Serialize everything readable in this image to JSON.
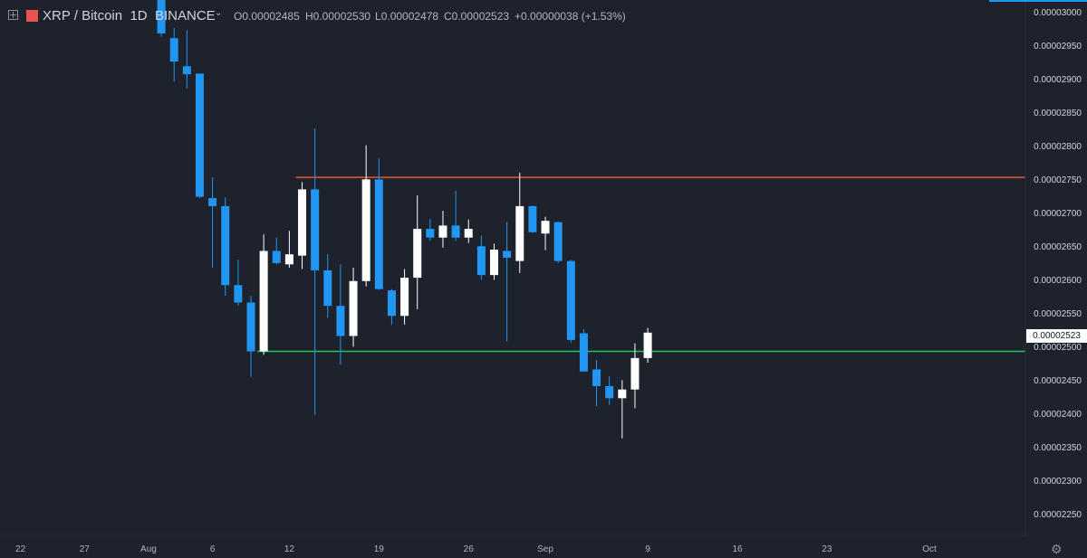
{
  "header": {
    "symbol": "XRP / Bitcoin",
    "interval": "1D",
    "exchange": "BINANCE",
    "open_label": "O",
    "open": "0.00002485",
    "high_label": "H",
    "high": "0.00002530",
    "low_label": "L",
    "low": "0.00002478",
    "close_label": "C",
    "close": "0.00002523",
    "change": "+0.00000038 (+1.53%)"
  },
  "icons": {
    "expand": "expand-icon",
    "brand": "binance-brand-icon",
    "dropdown": "chevron-down-icon",
    "settings": "gear-icon"
  },
  "colors": {
    "background": "#1d222c",
    "bull_candle": "#ffffff",
    "bear_candle": "#2196f3",
    "resistance_line": "#e4572e",
    "support_line": "#22c55e",
    "accent": "#2196f3"
  },
  "current_price_label": "0.00002523",
  "chart_data": {
    "type": "candlestick",
    "title": "XRP / Bitcoin",
    "interval": "1D",
    "y_tick_labels": [
      "0.00003000",
      "0.00002950",
      "0.00002900",
      "0.00002850",
      "0.00002800",
      "0.00002750",
      "0.00002700",
      "0.00002650",
      "0.00002600",
      "0.00002550",
      "0.00002500",
      "0.00002450",
      "0.00002400",
      "0.00002350",
      "0.00002300",
      "0.00002250"
    ],
    "x_tick_labels": [
      "22",
      "27",
      "Aug",
      "6",
      "12",
      "19",
      "26",
      "Sep",
      "9",
      "16",
      "23",
      "Oct"
    ],
    "x_tick_days": [
      -10,
      -5,
      0,
      5,
      11,
      18,
      25,
      31,
      39,
      46,
      53,
      61
    ],
    "ylim": [
      2.22e-05,
      3.02e-05
    ],
    "xlim_days": [
      -11.6,
      68.5
    ],
    "candles": [
      {
        "day": 1,
        "o": 3.03e-05,
        "h": 3.06e-05,
        "l": 2.965e-05,
        "c": 2.97e-05
      },
      {
        "day": 2,
        "o": 2.963e-05,
        "h": 2.978e-05,
        "l": 2.898e-05,
        "c": 2.928e-05
      },
      {
        "day": 3,
        "o": 2.921e-05,
        "h": 2.975e-05,
        "l": 2.888e-05,
        "c": 2.909e-05
      },
      {
        "day": 4,
        "o": 2.91e-05,
        "h": 2.91e-05,
        "l": 2.724e-05,
        "c": 2.726e-05
      },
      {
        "day": 5,
        "o": 2.724e-05,
        "h": 2.755e-05,
        "l": 2.62e-05,
        "c": 2.712e-05
      },
      {
        "day": 6,
        "o": 2.712e-05,
        "h": 2.725e-05,
        "l": 2.578e-05,
        "c": 2.594e-05
      },
      {
        "day": 7,
        "o": 2.594e-05,
        "h": 2.632e-05,
        "l": 2.563e-05,
        "c": 2.568e-05
      },
      {
        "day": 8,
        "o": 2.568e-05,
        "h": 2.578e-05,
        "l": 2.457e-05,
        "c": 2.495e-05
      },
      {
        "day": 9,
        "o": 2.495e-05,
        "h": 2.67e-05,
        "l": 2.49e-05,
        "c": 2.645e-05
      },
      {
        "day": 10,
        "o": 2.645e-05,
        "h": 2.665e-05,
        "l": 2.625e-05,
        "c": 2.627e-05
      },
      {
        "day": 11,
        "o": 2.625e-05,
        "h": 2.675e-05,
        "l": 2.62e-05,
        "c": 2.64e-05
      },
      {
        "day": 12,
        "o": 2.638e-05,
        "h": 2.748e-05,
        "l": 2.618e-05,
        "c": 2.737e-05
      },
      {
        "day": 13,
        "o": 2.737e-05,
        "h": 2.828e-05,
        "l": 2.4e-05,
        "c": 2.616e-05
      },
      {
        "day": 14,
        "o": 2.616e-05,
        "h": 2.64e-05,
        "l": 2.545e-05,
        "c": 2.563e-05
      },
      {
        "day": 15,
        "o": 2.563e-05,
        "h": 2.625e-05,
        "l": 2.475e-05,
        "c": 2.518e-05
      },
      {
        "day": 16,
        "o": 2.518e-05,
        "h": 2.62e-05,
        "l": 2.502e-05,
        "c": 2.6e-05
      },
      {
        "day": 17,
        "o": 2.6e-05,
        "h": 2.803e-05,
        "l": 2.592e-05,
        "c": 2.752e-05
      },
      {
        "day": 18,
        "o": 2.752e-05,
        "h": 2.783e-05,
        "l": 2.587e-05,
        "c": 2.588e-05
      },
      {
        "day": 19,
        "o": 2.586e-05,
        "h": 2.588e-05,
        "l": 2.535e-05,
        "c": 2.548e-05
      },
      {
        "day": 20,
        "o": 2.548e-05,
        "h": 2.618e-05,
        "l": 2.535e-05,
        "c": 2.605e-05
      },
      {
        "day": 21,
        "o": 2.605e-05,
        "h": 2.728e-05,
        "l": 2.558e-05,
        "c": 2.678e-05
      },
      {
        "day": 22,
        "o": 2.678e-05,
        "h": 2.693e-05,
        "l": 2.66e-05,
        "c": 2.665e-05
      },
      {
        "day": 23,
        "o": 2.665e-05,
        "h": 2.705e-05,
        "l": 2.65e-05,
        "c": 2.683e-05
      },
      {
        "day": 24,
        "o": 2.683e-05,
        "h": 2.735e-05,
        "l": 2.66e-05,
        "c": 2.665e-05
      },
      {
        "day": 25,
        "o": 2.665e-05,
        "h": 2.692e-05,
        "l": 2.657e-05,
        "c": 2.678e-05
      },
      {
        "day": 26,
        "o": 2.652e-05,
        "h": 2.668e-05,
        "l": 2.602e-05,
        "c": 2.609e-05
      },
      {
        "day": 27,
        "o": 2.609e-05,
        "h": 2.656e-05,
        "l": 2.602e-05,
        "c": 2.647e-05
      },
      {
        "day": 28,
        "o": 2.645e-05,
        "h": 2.688e-05,
        "l": 2.51e-05,
        "c": 2.635e-05
      },
      {
        "day": 29,
        "o": 2.63e-05,
        "h": 2.762e-05,
        "l": 2.612e-05,
        "c": 2.712e-05
      },
      {
        "day": 30,
        "o": 2.712e-05,
        "h": 2.713e-05,
        "l": 2.672e-05,
        "c": 2.673e-05
      },
      {
        "day": 31,
        "o": 2.671e-05,
        "h": 2.696e-05,
        "l": 2.646e-05,
        "c": 2.69e-05
      },
      {
        "day": 32,
        "o": 2.688e-05,
        "h": 2.689e-05,
        "l": 2.627e-05,
        "c": 2.63e-05
      },
      {
        "day": 33,
        "o": 2.63e-05,
        "h": 2.632e-05,
        "l": 2.508e-05,
        "c": 2.512e-05
      },
      {
        "day": 34,
        "o": 2.522e-05,
        "h": 2.528e-05,
        "l": 2.465e-05,
        "c": 2.465e-05
      },
      {
        "day": 35,
        "o": 2.468e-05,
        "h": 2.482e-05,
        "l": 2.413e-05,
        "c": 2.443e-05
      },
      {
        "day": 36,
        "o": 2.443e-05,
        "h": 2.458e-05,
        "l": 2.415e-05,
        "c": 2.425e-05
      },
      {
        "day": 37,
        "o": 2.425e-05,
        "h": 2.452e-05,
        "l": 2.365e-05,
        "c": 2.438e-05
      },
      {
        "day": 38,
        "o": 2.438e-05,
        "h": 2.507e-05,
        "l": 2.41e-05,
        "c": 2.485e-05
      },
      {
        "day": 39,
        "o": 2.485e-05,
        "h": 2.53e-05,
        "l": 2.478e-05,
        "c": 2.523e-05
      }
    ],
    "horizontal_lines": [
      {
        "kind": "resistance",
        "price": 2.755e-05,
        "from_day": 11.5,
        "color": "#e4572e"
      },
      {
        "kind": "support",
        "price": 2.495e-05,
        "from_day": 8.5,
        "color": "#22c55e"
      }
    ],
    "last_price": 2.523e-05,
    "grid": false
  }
}
